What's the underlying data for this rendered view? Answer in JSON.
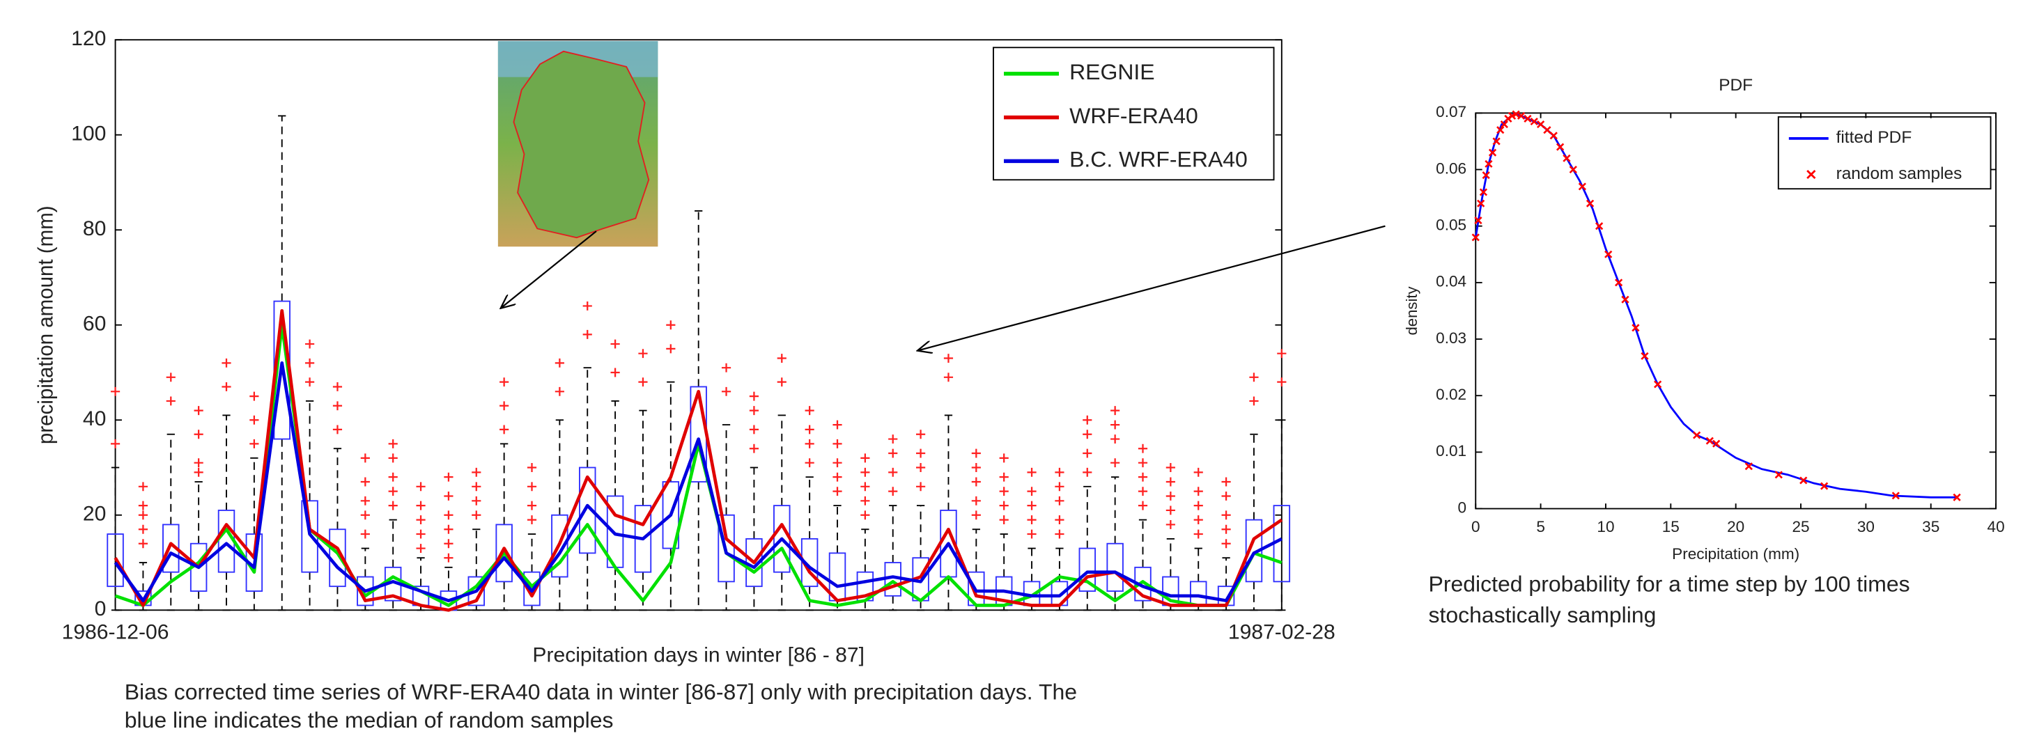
{
  "chart_data": [
    {
      "type": "box",
      "x_label": "Precipitation days in winter [86 - 87]",
      "y_label": "precipitation amount (mm)",
      "caption": [
        "Bias corrected time series of WRF-ERA40 data in winter [86-87] only with precipitation days. The",
        "blue line indicates the median of random samples"
      ],
      "categories": [
        "1986-12-06",
        null,
        null,
        null,
        null,
        null,
        null,
        null,
        null,
        null,
        null,
        null,
        null,
        null,
        null,
        null,
        null,
        null,
        null,
        null,
        null,
        null,
        null,
        null,
        null,
        null,
        null,
        null,
        null,
        null,
        null,
        null,
        null,
        null,
        null,
        null,
        null,
        null,
        null,
        null,
        null,
        null,
        "1987-02-28"
      ],
      "ylim": [
        0,
        120
      ],
      "yticks": [
        0,
        20,
        40,
        60,
        80,
        100,
        120
      ],
      "legend": "upper right",
      "series": [
        {
          "name": "REGNIE",
          "color": "#00e000",
          "values": [
            3,
            1,
            6,
            10,
            17,
            8,
            60,
            17,
            12,
            3,
            7,
            4,
            1,
            5,
            12,
            5,
            10,
            18,
            9,
            2,
            10,
            35,
            12,
            8,
            13,
            2,
            1,
            2,
            6,
            2,
            7,
            1,
            1,
            3,
            7,
            6,
            2,
            6,
            2,
            1,
            1,
            12,
            10
          ]
        },
        {
          "name": "WRF-ERA40",
          "color": "#e00000",
          "values": [
            11,
            1,
            14,
            9,
            18,
            11,
            63,
            17,
            13,
            2,
            3,
            1,
            0,
            2,
            13,
            3,
            14,
            28,
            20,
            18,
            28,
            46,
            15,
            10,
            18,
            8,
            2,
            3,
            5,
            7,
            17,
            3,
            2,
            1,
            1,
            7,
            8,
            3,
            1,
            1,
            1,
            15,
            19
          ]
        },
        {
          "name": "B.C. WRF-ERA40",
          "color": "#0000e0",
          "values": [
            10,
            2,
            12,
            9,
            14,
            9,
            52,
            16,
            9,
            4,
            6,
            4,
            2,
            4,
            11,
            4,
            12,
            22,
            16,
            15,
            20,
            36,
            12,
            9,
            15,
            9,
            5,
            6,
            7,
            6,
            14,
            4,
            4,
            3,
            3,
            8,
            8,
            5,
            3,
            3,
            2,
            12,
            15
          ]
        }
      ],
      "boxes": {
        "color": "#3030ff",
        "outlier_color": "#ff2020",
        "whisker_low": [
          0,
          0,
          0,
          0,
          0,
          0,
          0,
          0,
          0,
          0,
          0,
          0,
          0,
          0,
          0,
          0,
          0,
          0,
          0,
          0,
          0,
          0,
          0,
          0,
          0,
          0,
          0,
          0,
          0,
          0,
          0,
          0,
          0,
          0,
          0,
          0,
          0,
          0,
          0,
          0,
          0,
          0,
          0
        ],
        "q1": [
          5,
          1,
          8,
          4,
          8,
          4,
          36,
          8,
          5,
          1,
          2,
          1,
          0,
          1,
          6,
          1,
          7,
          12,
          9,
          8,
          13,
          27,
          6,
          5,
          8,
          5,
          2,
          2,
          3,
          2,
          7,
          1,
          1,
          1,
          1,
          4,
          4,
          2,
          1,
          1,
          1,
          6,
          6
        ],
        "q3": [
          16,
          4,
          18,
          14,
          21,
          16,
          65,
          23,
          17,
          7,
          9,
          5,
          4,
          7,
          18,
          8,
          20,
          30,
          24,
          22,
          27,
          47,
          20,
          15,
          22,
          15,
          12,
          8,
          10,
          11,
          21,
          8,
          7,
          6,
          6,
          13,
          14,
          9,
          7,
          6,
          5,
          19,
          22
        ],
        "whisker_high": [
          30,
          10,
          37,
          27,
          41,
          32,
          104,
          44,
          34,
          13,
          19,
          11,
          9,
          17,
          35,
          16,
          40,
          51,
          44,
          42,
          48,
          84,
          39,
          30,
          41,
          28,
          22,
          17,
          22,
          22,
          41,
          17,
          16,
          13,
          13,
          26,
          28,
          19,
          15,
          13,
          11,
          37,
          40
        ],
        "outliers": [
          [
            35,
            46
          ],
          [
            14,
            17,
            20,
            22,
            26
          ],
          [
            44,
            49
          ],
          [
            29,
            31,
            37,
            42
          ],
          [
            47,
            52
          ],
          [
            35,
            40,
            45
          ],
          [],
          [
            48,
            52,
            56
          ],
          [
            38,
            43,
            47
          ],
          [
            16,
            20,
            23,
            27,
            32
          ],
          [
            22,
            25,
            28,
            32,
            35
          ],
          [
            13,
            16,
            19,
            22,
            26
          ],
          [
            11,
            14,
            17,
            20,
            24,
            28
          ],
          [
            20,
            23,
            26,
            29
          ],
          [
            38,
            43,
            48
          ],
          [
            19,
            22,
            26,
            30
          ],
          [
            46,
            52
          ],
          [
            58,
            64
          ],
          [
            50,
            56
          ],
          [
            48,
            54
          ],
          [
            55,
            60
          ],
          [],
          [
            46,
            51
          ],
          [
            34,
            38,
            42,
            45
          ],
          [
            48,
            53
          ],
          [
            31,
            35,
            38,
            42
          ],
          [
            25,
            28,
            31,
            35,
            39
          ],
          [
            20,
            23,
            26,
            29,
            32
          ],
          [
            25,
            29,
            33,
            36
          ],
          [
            26,
            30,
            33,
            37
          ],
          [
            49,
            53
          ],
          [
            20,
            23,
            27,
            30,
            33
          ],
          [
            19,
            22,
            25,
            28,
            32
          ],
          [
            16,
            19,
            22,
            25,
            29
          ],
          [
            16,
            19,
            23,
            26,
            29
          ],
          [
            29,
            33,
            37,
            40
          ],
          [
            31,
            36,
            39,
            42
          ],
          [
            22,
            25,
            28,
            31,
            34
          ],
          [
            18,
            21,
            24,
            27,
            30
          ],
          [
            16,
            19,
            22,
            25,
            29
          ],
          [
            14,
            17,
            20,
            24,
            27
          ],
          [
            44,
            49
          ],
          [
            48,
            54
          ]
        ]
      }
    },
    {
      "type": "line",
      "title": "PDF",
      "x_label": "Precipitation (mm)",
      "y_label": "density",
      "caption": [
        "Predicted probability for a time step by 100 times",
        "stochastically sampling"
      ],
      "xlim": [
        0,
        40
      ],
      "xticks": [
        0,
        5,
        10,
        15,
        20,
        25,
        30,
        35,
        40
      ],
      "ylim": [
        0,
        0.07
      ],
      "yticks": [
        0,
        0.01,
        0.02,
        0.03,
        0.04,
        0.05,
        0.06,
        0.07
      ],
      "legend": "upper right",
      "series": [
        {
          "name": "fitted PDF",
          "color": "#0000ff",
          "x": [
            0,
            0.5,
            1,
            1.5,
            2,
            3,
            4,
            5,
            6,
            7,
            8,
            9,
            10,
            11,
            12,
            13,
            14,
            15,
            16,
            17,
            18,
            20,
            22,
            24,
            26,
            28,
            30,
            32,
            35,
            37
          ],
          "values": [
            0.048,
            0.055,
            0.061,
            0.065,
            0.068,
            0.07,
            0.069,
            0.068,
            0.066,
            0.062,
            0.058,
            0.053,
            0.046,
            0.04,
            0.034,
            0.027,
            0.022,
            0.018,
            0.015,
            0.013,
            0.012,
            0.009,
            0.007,
            0.006,
            0.0045,
            0.0035,
            0.003,
            0.0023,
            0.002,
            0.002
          ]
        },
        {
          "name": "random samples",
          "type": "scatter",
          "color": "#ff0000",
          "x": [
            0,
            0.2,
            0.4,
            0.6,
            0.8,
            1.0,
            1.3,
            1.6,
            1.9,
            2.2,
            2.5,
            2.8,
            3.1,
            3.5,
            4.0,
            4.5,
            5.0,
            5.5,
            6.0,
            6.5,
            7.0,
            7.5,
            8.2,
            8.8,
            9.5,
            10.2,
            11.0,
            11.5,
            12.3,
            13.0,
            14.0,
            17.0,
            18.0,
            18.5,
            21.0,
            23.3,
            25.2,
            26.8,
            32.3,
            37.0
          ],
          "values": [
            0.048,
            0.051,
            0.054,
            0.056,
            0.059,
            0.061,
            0.063,
            0.065,
            0.067,
            0.068,
            0.069,
            0.0695,
            0.0698,
            0.0695,
            0.069,
            0.0685,
            0.068,
            0.067,
            0.066,
            0.064,
            0.062,
            0.06,
            0.057,
            0.054,
            0.05,
            0.045,
            0.04,
            0.037,
            0.032,
            0.027,
            0.022,
            0.013,
            0.012,
            0.0115,
            0.0075,
            0.006,
            0.005,
            0.004,
            0.0023,
            0.002
          ]
        }
      ]
    }
  ]
}
